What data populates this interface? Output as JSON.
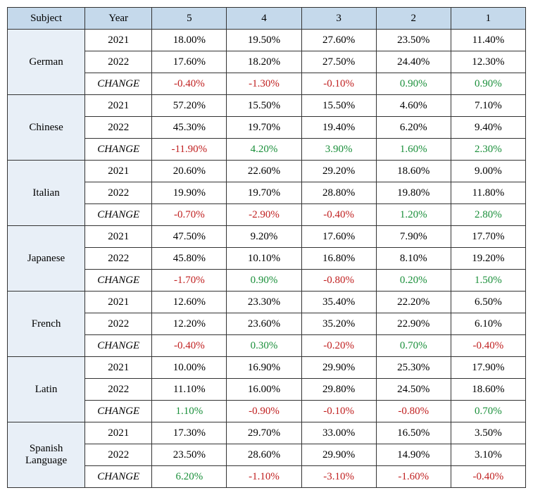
{
  "headers": {
    "subject": "Subject",
    "year": "Year",
    "s5": "5",
    "s4": "4",
    "s3": "3",
    "s2": "2",
    "s1": "1"
  },
  "change_label": "CHANGE",
  "colors": {
    "pos": "#1a8f3a",
    "neg": "#c02020",
    "header_bg": "#c5d9eb",
    "subject_bg": "#e8eff7",
    "border": "#333333"
  },
  "subjects": [
    {
      "name": "German",
      "rows": [
        {
          "year": "2021",
          "vals": [
            "18.00%",
            "19.50%",
            "27.60%",
            "23.50%",
            "11.40%"
          ],
          "signs": [
            0,
            0,
            0,
            0,
            0
          ]
        },
        {
          "year": "2022",
          "vals": [
            "17.60%",
            "18.20%",
            "27.50%",
            "24.40%",
            "12.30%"
          ],
          "signs": [
            0,
            0,
            0,
            0,
            0
          ]
        },
        {
          "year": "CHANGE",
          "vals": [
            "-0.40%",
            "-1.30%",
            "-0.10%",
            "0.90%",
            "0.90%"
          ],
          "signs": [
            -1,
            -1,
            -1,
            1,
            1
          ]
        }
      ]
    },
    {
      "name": "Chinese",
      "rows": [
        {
          "year": "2021",
          "vals": [
            "57.20%",
            "15.50%",
            "15.50%",
            "4.60%",
            "7.10%"
          ],
          "signs": [
            0,
            0,
            0,
            0,
            0
          ]
        },
        {
          "year": "2022",
          "vals": [
            "45.30%",
            "19.70%",
            "19.40%",
            "6.20%",
            "9.40%"
          ],
          "signs": [
            0,
            0,
            0,
            0,
            0
          ]
        },
        {
          "year": "CHANGE",
          "vals": [
            "-11.90%",
            "4.20%",
            "3.90%",
            "1.60%",
            "2.30%"
          ],
          "signs": [
            -1,
            1,
            1,
            1,
            1
          ]
        }
      ]
    },
    {
      "name": "Italian",
      "rows": [
        {
          "year": "2021",
          "vals": [
            "20.60%",
            "22.60%",
            "29.20%",
            "18.60%",
            "9.00%"
          ],
          "signs": [
            0,
            0,
            0,
            0,
            0
          ]
        },
        {
          "year": "2022",
          "vals": [
            "19.90%",
            "19.70%",
            "28.80%",
            "19.80%",
            "11.80%"
          ],
          "signs": [
            0,
            0,
            0,
            0,
            0
          ]
        },
        {
          "year": "CHANGE",
          "vals": [
            "-0.70%",
            "-2.90%",
            "-0.40%",
            "1.20%",
            "2.80%"
          ],
          "signs": [
            -1,
            -1,
            -1,
            1,
            1
          ]
        }
      ]
    },
    {
      "name": "Japanese",
      "rows": [
        {
          "year": "2021",
          "vals": [
            "47.50%",
            "9.20%",
            "17.60%",
            "7.90%",
            "17.70%"
          ],
          "signs": [
            0,
            0,
            0,
            0,
            0
          ]
        },
        {
          "year": "2022",
          "vals": [
            "45.80%",
            "10.10%",
            "16.80%",
            "8.10%",
            "19.20%"
          ],
          "signs": [
            0,
            0,
            0,
            0,
            0
          ]
        },
        {
          "year": "CHANGE",
          "vals": [
            "-1.70%",
            "0.90%",
            "-0.80%",
            "0.20%",
            "1.50%"
          ],
          "signs": [
            -1,
            1,
            -1,
            1,
            1
          ]
        }
      ]
    },
    {
      "name": "French",
      "rows": [
        {
          "year": "2021",
          "vals": [
            "12.60%",
            "23.30%",
            "35.40%",
            "22.20%",
            "6.50%"
          ],
          "signs": [
            0,
            0,
            0,
            0,
            0
          ]
        },
        {
          "year": "2022",
          "vals": [
            "12.20%",
            "23.60%",
            "35.20%",
            "22.90%",
            "6.10%"
          ],
          "signs": [
            0,
            0,
            0,
            0,
            0
          ]
        },
        {
          "year": "CHANGE",
          "vals": [
            "-0.40%",
            "0.30%",
            "-0.20%",
            "0.70%",
            "-0.40%"
          ],
          "signs": [
            -1,
            1,
            -1,
            1,
            -1
          ]
        }
      ]
    },
    {
      "name": "Latin",
      "rows": [
        {
          "year": "2021",
          "vals": [
            "10.00%",
            "16.90%",
            "29.90%",
            "25.30%",
            "17.90%"
          ],
          "signs": [
            0,
            0,
            0,
            0,
            0
          ]
        },
        {
          "year": "2022",
          "vals": [
            "11.10%",
            "16.00%",
            "29.80%",
            "24.50%",
            "18.60%"
          ],
          "signs": [
            0,
            0,
            0,
            0,
            0
          ]
        },
        {
          "year": "CHANGE",
          "vals": [
            "1.10%",
            "-0.90%",
            "-0.10%",
            "-0.80%",
            "0.70%"
          ],
          "signs": [
            1,
            -1,
            -1,
            -1,
            1
          ]
        }
      ]
    },
    {
      "name": "Spanish Language",
      "rows": [
        {
          "year": "2021",
          "vals": [
            "17.30%",
            "29.70%",
            "33.00%",
            "16.50%",
            "3.50%"
          ],
          "signs": [
            0,
            0,
            0,
            0,
            0
          ]
        },
        {
          "year": "2022",
          "vals": [
            "23.50%",
            "28.60%",
            "29.90%",
            "14.90%",
            "3.10%"
          ],
          "signs": [
            0,
            0,
            0,
            0,
            0
          ]
        },
        {
          "year": "CHANGE",
          "vals": [
            "6.20%",
            "-1.10%",
            "-3.10%",
            "-1.60%",
            "-0.40%"
          ],
          "signs": [
            1,
            -1,
            -1,
            -1,
            -1
          ]
        }
      ]
    }
  ]
}
